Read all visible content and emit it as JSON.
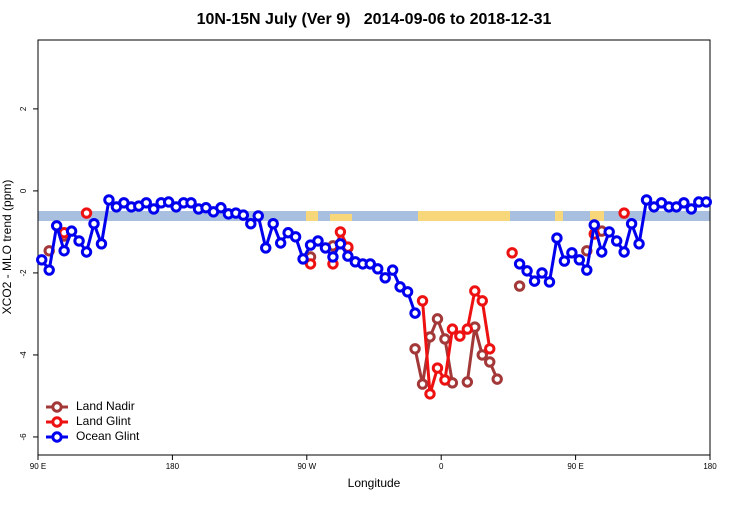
{
  "chart_data": {
    "type": "line",
    "title": "10N-15N July (Ver 9)   2014-09-06 to 2018-12-31",
    "x_label": "Longitude",
    "y_label": "XCO2 - MLO trend (ppm)",
    "xlim": [
      90,
      540
    ],
    "ylim": [
      -6.44,
      3.68
    ],
    "xticks": [
      {
        "value": 90,
        "label": "90 E"
      },
      {
        "value": 180,
        "label": "180"
      },
      {
        "value": 270,
        "label": "90 W"
      },
      {
        "value": 360,
        "label": "0"
      },
      {
        "value": 450,
        "label": "90 E"
      },
      {
        "value": 540,
        "label": "180"
      }
    ],
    "yticks": [
      -6,
      -4,
      -2,
      0,
      2
    ],
    "legend": "bottomleft",
    "x": [
      92.5,
      97.5,
      102.5,
      107.5,
      112.5,
      117.5,
      122.5,
      127.5,
      132.5,
      137.5,
      142.5,
      147.5,
      152.5,
      157.5,
      162.5,
      167.5,
      172.5,
      177.5,
      182.5,
      187.5,
      192.5,
      197.5,
      202.5,
      207.5,
      212.5,
      217.5,
      222.5,
      227.5,
      232.5,
      237.5,
      242.5,
      247.5,
      252.5,
      257.5,
      262.5,
      267.5,
      272.5,
      277.5,
      282.5,
      287.5,
      292.5,
      297.5,
      302.5,
      307.5,
      312.5,
      317.5,
      322.5,
      327.5,
      332.5,
      337.5,
      342.5,
      347.5,
      352.5,
      357.5,
      362.5,
      367.5,
      372.5,
      377.5,
      382.5,
      387.5,
      392.5,
      397.5,
      402.5,
      407.5,
      412.5,
      417.5,
      422.5,
      427.5,
      432.5,
      437.5,
      442.5,
      447.5,
      452.5,
      457.5,
      462.5,
      467.5,
      472.5,
      477.5,
      482.5,
      487.5,
      492.5,
      497.5,
      502.5,
      507.5,
      512.5,
      517.5,
      522.5,
      527.5,
      532.5,
      537.5
    ],
    "series": [
      {
        "name": "Land Nadir",
        "color": "#a33838",
        "values": [
          null,
          -1.46,
          null,
          -1.1,
          null,
          null,
          null,
          null,
          null,
          null,
          null,
          null,
          null,
          null,
          null,
          null,
          null,
          null,
          null,
          null,
          null,
          null,
          null,
          null,
          null,
          null,
          null,
          null,
          null,
          null,
          null,
          null,
          null,
          null,
          null,
          null,
          -1.61,
          null,
          null,
          -1.34,
          null,
          -1.39,
          null,
          null,
          null,
          null,
          null,
          null,
          null,
          null,
          -3.85,
          -4.71,
          -3.56,
          -3.12,
          -3.61,
          -4.68,
          null,
          -4.66,
          -3.32,
          -4.0,
          -4.17,
          -4.59,
          null,
          null,
          -2.32,
          null,
          null,
          null,
          null,
          null,
          null,
          null,
          null,
          -1.46,
          null,
          -0.98,
          null,
          null,
          null,
          null,
          null,
          null,
          null,
          null,
          null,
          null,
          null,
          null,
          null,
          null
        ]
      },
      {
        "name": "Land Glint",
        "color": "#ee1111",
        "values": [
          null,
          null,
          null,
          -1.02,
          null,
          null,
          -0.54,
          null,
          null,
          null,
          null,
          null,
          null,
          null,
          null,
          null,
          null,
          null,
          null,
          null,
          null,
          null,
          null,
          null,
          null,
          null,
          null,
          null,
          null,
          null,
          null,
          null,
          null,
          null,
          null,
          null,
          -1.78,
          null,
          null,
          -1.78,
          -1.0,
          -1.37,
          null,
          null,
          null,
          null,
          null,
          null,
          null,
          null,
          null,
          -2.68,
          -4.95,
          -4.32,
          -4.61,
          -3.37,
          -3.54,
          -3.37,
          -2.44,
          -2.68,
          -3.85,
          null,
          null,
          -1.51,
          null,
          null,
          null,
          null,
          null,
          null,
          null,
          null,
          null,
          null,
          -1.05,
          null,
          null,
          null,
          -0.54,
          null,
          null,
          null,
          null,
          null,
          null,
          null,
          null,
          null,
          null,
          null
        ]
      },
      {
        "name": "Ocean Glint",
        "color": "#0000ee",
        "values": [
          -1.68,
          -1.93,
          -0.85,
          -1.46,
          -0.98,
          -1.22,
          -1.49,
          -0.8,
          -1.29,
          -0.22,
          -0.39,
          -0.29,
          -0.39,
          -0.37,
          -0.29,
          -0.44,
          -0.29,
          -0.27,
          -0.39,
          -0.29,
          -0.29,
          -0.44,
          -0.41,
          -0.51,
          -0.41,
          -0.56,
          -0.54,
          -0.59,
          -0.8,
          -0.61,
          -1.39,
          -0.8,
          -1.27,
          -1.02,
          -1.12,
          -1.66,
          -1.32,
          -1.22,
          -1.39,
          -1.61,
          -1.29,
          -1.59,
          -1.73,
          -1.78,
          -1.78,
          -1.9,
          -2.12,
          -1.93,
          -2.34,
          -2.46,
          -2.98,
          null,
          null,
          null,
          null,
          null,
          null,
          null,
          null,
          null,
          null,
          null,
          null,
          null,
          -1.78,
          -1.95,
          -2.2,
          -2.0,
          -2.22,
          -1.15,
          -1.71,
          -1.51,
          -1.68,
          -1.93,
          -0.83,
          -1.49,
          -1.0,
          -1.22,
          -1.49,
          -0.8,
          -1.29,
          -0.22,
          -0.39,
          -0.29,
          -0.39,
          -0.39,
          -0.29,
          -0.44,
          -0.27,
          -0.27
        ]
      }
    ]
  }
}
